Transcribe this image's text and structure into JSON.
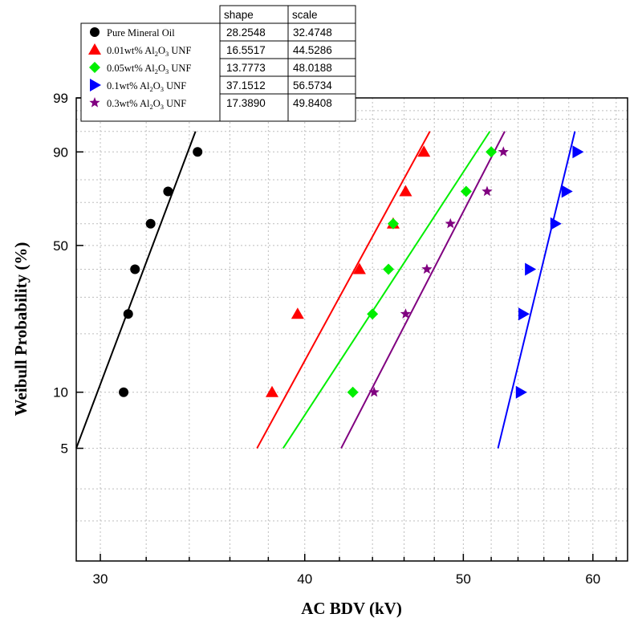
{
  "chart_data": {
    "type": "scatter",
    "title": "",
    "xlabel": "AC BDV (kV)",
    "ylabel": "Weibull Probability (%)",
    "x_scale": "log",
    "y_scale": "weibull",
    "xlim": [
      29,
      63
    ],
    "ylim": [
      1.2,
      99
    ],
    "x_ticks": [
      30,
      40,
      50,
      60
    ],
    "y_ticks": [
      5,
      10,
      50,
      90,
      99
    ],
    "grid": true,
    "legend_position": "top-left",
    "table_headers": [
      "shape",
      "scale"
    ],
    "series": [
      {
        "name_parts": [
          "Pure Mineral Oil",
          "",
          "",
          ""
        ],
        "marker": "circle",
        "color": "#000000",
        "shape": "28.2548",
        "scale": "32.4748",
        "points": [
          [
            31.0,
            10
          ],
          [
            31.2,
            25
          ],
          [
            31.5,
            40
          ],
          [
            32.2,
            60
          ],
          [
            33.0,
            75
          ],
          [
            34.4,
            90
          ]
        ],
        "fit_line": [
          [
            29.0,
            5
          ],
          [
            34.3,
            95
          ]
        ]
      },
      {
        "name_parts": [
          "0.01wt% Al",
          "2",
          "O",
          "3",
          " UNF"
        ],
        "marker": "triangle-up",
        "color": "#ff0000",
        "shape": "16.5517",
        "scale": "44.5286",
        "points": [
          [
            38.2,
            10
          ],
          [
            39.6,
            25
          ],
          [
            43.2,
            40
          ],
          [
            45.3,
            60
          ],
          [
            46.1,
            75
          ],
          [
            47.3,
            90
          ]
        ],
        "fit_line": [
          [
            37.4,
            5
          ],
          [
            47.7,
            95
          ]
        ]
      },
      {
        "name_parts": [
          "0.05wt% Al",
          "2",
          "O",
          "3",
          " UNF"
        ],
        "marker": "diamond",
        "color": "#00ee00",
        "shape": "13.7773",
        "scale": "48.0188",
        "points": [
          [
            42.8,
            10
          ],
          [
            44.0,
            25
          ],
          [
            45.0,
            40
          ],
          [
            45.3,
            60
          ],
          [
            50.2,
            75
          ],
          [
            52.0,
            90
          ]
        ],
        "fit_line": [
          [
            38.8,
            5
          ],
          [
            51.9,
            95
          ]
        ]
      },
      {
        "name_parts": [
          "0.1wt% Al",
          "2",
          "O",
          "3",
          " UNF"
        ],
        "marker": "triangle-right",
        "color": "#0000ff",
        "shape": "37.1512",
        "scale": "56.5734",
        "points": [
          [
            54.2,
            10
          ],
          [
            54.4,
            25
          ],
          [
            54.9,
            40
          ],
          [
            56.9,
            60
          ],
          [
            57.8,
            75
          ],
          [
            58.7,
            90
          ]
        ],
        "fit_line": [
          [
            52.5,
            5
          ],
          [
            58.5,
            95
          ]
        ]
      },
      {
        "name_parts": [
          "0.3wt% Al",
          "2",
          "O",
          "3",
          " UNF"
        ],
        "marker": "star",
        "color": "#800080",
        "shape": "17.3890",
        "scale": "49.8408",
        "points": [
          [
            44.1,
            10
          ],
          [
            46.1,
            25
          ],
          [
            47.5,
            40
          ],
          [
            49.1,
            60
          ],
          [
            51.7,
            75
          ],
          [
            52.9,
            90
          ]
        ],
        "fit_line": [
          [
            42.1,
            5
          ],
          [
            53.0,
            95
          ]
        ]
      }
    ]
  }
}
